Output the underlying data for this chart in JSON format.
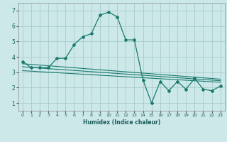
{
  "title": "",
  "xlabel": "Humidex (Indice chaleur)",
  "background_color": "#cce8e8",
  "grid_color": "#aacccc",
  "line_color": "#1a7a6e",
  "xlim": [
    -0.5,
    23.5
  ],
  "ylim": [
    0.5,
    7.5
  ],
  "yticks": [
    1,
    2,
    3,
    4,
    5,
    6,
    7
  ],
  "xticks": [
    0,
    1,
    2,
    3,
    4,
    5,
    6,
    7,
    8,
    9,
    10,
    11,
    12,
    13,
    14,
    15,
    16,
    17,
    18,
    19,
    20,
    21,
    22,
    23
  ],
  "series1_x": [
    0,
    1,
    2,
    3,
    4,
    5,
    6,
    7,
    8,
    9,
    10,
    11,
    12,
    13,
    14,
    15,
    16,
    17,
    18,
    19,
    20,
    21,
    22,
    23
  ],
  "series1_y": [
    3.7,
    3.3,
    3.3,
    3.3,
    3.9,
    3.9,
    4.8,
    5.3,
    5.5,
    6.7,
    6.9,
    6.6,
    5.1,
    5.1,
    2.5,
    1.0,
    2.4,
    1.8,
    2.4,
    1.9,
    2.6,
    1.9,
    1.8,
    2.1
  ],
  "series2_x": [
    0,
    23
  ],
  "series2_y": [
    3.55,
    2.55
  ],
  "series3_x": [
    0,
    23
  ],
  "series3_y": [
    3.35,
    2.45
  ],
  "series4_x": [
    0,
    23
  ],
  "series4_y": [
    3.1,
    2.35
  ]
}
